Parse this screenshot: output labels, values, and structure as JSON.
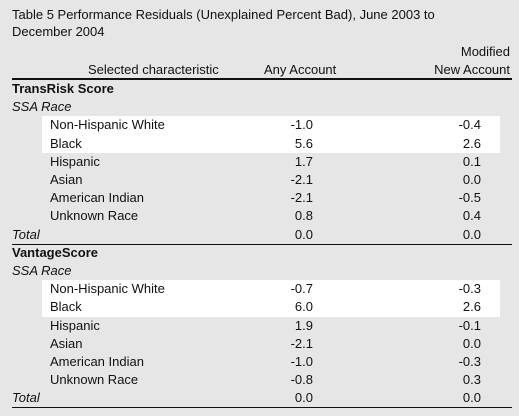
{
  "title": "Table 5  Performance Residuals (Unexplained Percent Bad), June 2003 to December 2004",
  "header": {
    "characteristic": "Selected characteristic",
    "any": "Any Account",
    "modified": [
      "Modified",
      "New Account"
    ]
  },
  "sections": [
    {
      "name": "TransRisk Score",
      "group": "SSA Race",
      "rows": [
        [
          "Non-Hispanic White",
          "-1.0",
          "-0.4"
        ],
        [
          "Black",
          "5.6",
          "2.6"
        ],
        [
          "Hispanic",
          "1.7",
          "0.1"
        ],
        [
          "Asian",
          "-2.1",
          "0.0"
        ],
        [
          "American Indian",
          "-2.1",
          "-0.5"
        ],
        [
          "Unknown Race",
          "0.8",
          "0.4"
        ]
      ],
      "total": [
        "Total",
        "0.0",
        "0.0"
      ]
    },
    {
      "name": "VantageScore",
      "group": "SSA Race",
      "rows": [
        [
          "Non-Hispanic White",
          "-0.7",
          "-0.3"
        ],
        [
          "Black",
          "6.0",
          "2.6"
        ],
        [
          "Hispanic",
          "1.9",
          "-0.1"
        ],
        [
          "Asian",
          "-2.1",
          "0.0"
        ],
        [
          "American Indian",
          "-1.0",
          "-0.3"
        ],
        [
          "Unknown Race",
          "-0.8",
          "0.3"
        ]
      ],
      "total": [
        "Total",
        "0.0",
        "0.0"
      ]
    }
  ]
}
